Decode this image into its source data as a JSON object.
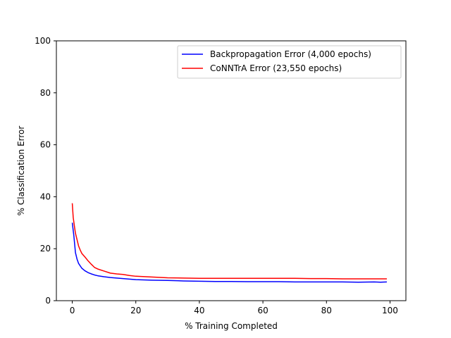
{
  "chart_data": {
    "type": "line",
    "title": "",
    "xlabel": "% Training Completed",
    "ylabel": "% Classification Error",
    "xlim": [
      -5,
      105
    ],
    "ylim": [
      0,
      100
    ],
    "xticks": [
      0,
      20,
      40,
      60,
      80,
      100
    ],
    "yticks": [
      0,
      20,
      40,
      60,
      80,
      100
    ],
    "grid": false,
    "legend_position": "top-right",
    "series": [
      {
        "name": "Backpropagation Error (4,000 epochs)",
        "color": "#0000ff",
        "x": [
          0,
          0.5,
          1,
          1.5,
          2,
          3,
          4,
          5,
          6,
          7,
          8,
          10,
          12,
          15,
          18,
          20,
          25,
          30,
          35,
          40,
          45,
          50,
          55,
          60,
          65,
          70,
          75,
          80,
          85,
          90,
          95,
          97,
          99
        ],
        "y": [
          30,
          25,
          18.5,
          16,
          14.3,
          12.5,
          11.5,
          10.8,
          10.3,
          9.9,
          9.6,
          9.2,
          8.9,
          8.6,
          8.3,
          8.1,
          7.9,
          7.8,
          7.6,
          7.5,
          7.4,
          7.4,
          7.3,
          7.3,
          7.3,
          7.2,
          7.2,
          7.2,
          7.2,
          7.1,
          7.2,
          7.1,
          7.2
        ]
      },
      {
        "name": "CoNNTrA Error (23,550 epochs)",
        "color": "#ff0000",
        "x": [
          0,
          0.3,
          0.7,
          1,
          1.5,
          2,
          2.5,
          3,
          4,
          5,
          6,
          7,
          8,
          10,
          12,
          14,
          16,
          18,
          20,
          25,
          30,
          35,
          40,
          45,
          50,
          55,
          60,
          65,
          70,
          75,
          80,
          85,
          90,
          95,
          99
        ],
        "y": [
          37.5,
          32,
          28.5,
          26,
          23.5,
          21,
          19.5,
          18.2,
          16.8,
          15.3,
          14,
          12.8,
          12.2,
          11.4,
          10.6,
          10.3,
          10.1,
          9.7,
          9.4,
          9.1,
          8.8,
          8.7,
          8.6,
          8.6,
          8.6,
          8.6,
          8.6,
          8.6,
          8.6,
          8.5,
          8.5,
          8.4,
          8.4,
          8.4,
          8.4
        ]
      }
    ]
  }
}
